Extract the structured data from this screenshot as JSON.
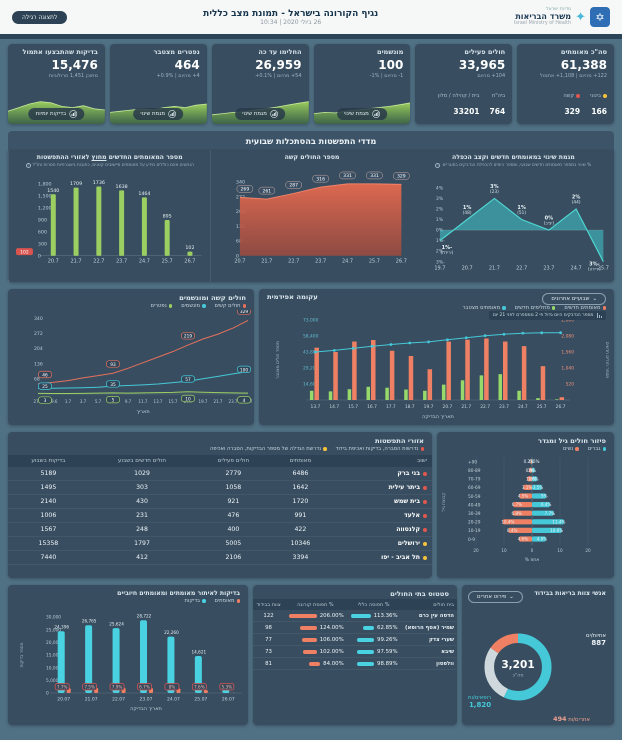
{
  "colors": {
    "page_bg": "#507084",
    "card_bg": "#384e60",
    "band_bg": "#3d5468",
    "teal": "#45c8d8",
    "orange": "#ef8063",
    "green": "#9ccf62",
    "red": "#e2574c",
    "yellow": "#f5c33b",
    "cyan": "#49d2e2"
  },
  "icons": {
    "info": "i",
    "chevron": "⌄"
  },
  "header": {
    "logo_top": "מדינת ישראל",
    "logo_title": "משרד הבריאות",
    "logo_subtitle": "Israel Ministry of Health",
    "title": "נגיף הקורונה בישראל - תמונת מצב כללית",
    "datetime": "26 ביולי 2020 | 10:34",
    "view_button": "לתצוגה רגילה"
  },
  "kpis": [
    {
      "title": "סה\"כ מאומתים",
      "value": "61,388",
      "delta": "‎+122 מהיום | ‎+1,108 אתמול",
      "substats": [
        {
          "label": "בינוני",
          "dot": "#f5c33b",
          "value": "166"
        },
        {
          "label": "קשה",
          "dot": "#e2574c",
          "value": "329"
        }
      ]
    },
    {
      "title": "חולים פעילים",
      "value": "33,965",
      "delta": "‎+104 מהיום",
      "substats": [
        {
          "label": "ביה\"ח",
          "value": "764"
        },
        {
          "label": "בית / קהילה / מלון",
          "value": "33201"
        }
      ]
    },
    {
      "title": "מונשמים",
      "value": "100",
      "delta": "‎-1 מהיום | ‎-1%",
      "button": "מגמת שינוי",
      "spark": [
        0.35,
        0.4,
        0.38,
        0.45,
        0.5,
        0.55,
        0.6,
        0.65,
        0.72,
        0.8
      ]
    },
    {
      "title": "החלימו עד כה",
      "value": "26,959",
      "delta": "‎+54 מהיום | ‎+0.1%",
      "button": "מגמת שינוי",
      "spark": [
        0.3,
        0.35,
        0.4,
        0.42,
        0.5,
        0.55,
        0.62,
        0.7,
        0.78,
        0.85
      ]
    },
    {
      "title": "נפטרים מצטבר",
      "value": "464",
      "delta": "‎+4 מהיום | ‎+0.9%",
      "button": "מגמת שינוי",
      "spark": [
        0.4,
        0.45,
        0.5,
        0.55,
        0.5,
        0.6,
        0.65,
        0.6,
        0.7,
        0.75
      ]
    },
    {
      "title": "בדיקות שהתבצעו אתמול",
      "value": "15,476",
      "delta": "מתוכן 1,451 סרולוגיות",
      "button": "בדיקות יומיות",
      "spark": [
        0.45,
        0.6,
        0.75,
        0.85,
        0.8,
        0.65,
        0.6,
        0.68,
        0.55,
        0.5
      ]
    }
  ],
  "section_title": "מדדי התפשטות בהסתכלות שבועית",
  "chart_data": [
    {
      "id": "new-confirmed-outside-spread-areas",
      "type": "bar",
      "title_pre": "מספר המאומתים החדשים",
      "title_em": "מחוץ",
      "title_post": "לאזורי ההתפשטות",
      "subtitle": "הנתונים אינם כוללים מידע על מאומתים מיישובים קטנים, כתובות גיאוגרפיות חסרות וחו\"ל",
      "categories": [
        "20.7",
        "21.7",
        "22.7",
        "23.7",
        "24.7",
        "25.7",
        "26.7"
      ],
      "values": [
        1540,
        1709,
        1736,
        1638,
        1464,
        895,
        102
      ],
      "ylim": [
        0,
        1800
      ],
      "yticks": [
        0,
        300,
        600,
        900,
        1200,
        1500,
        1800
      ],
      "latest_badge": "102",
      "bar_color": "#9ccf62"
    },
    {
      "id": "severe-patients-count",
      "type": "area",
      "title": "מספר החולים קשה",
      "categories": [
        "20.7",
        "21.7",
        "22.7",
        "23.7",
        "24.7",
        "25.7",
        "26.7"
      ],
      "values": [
        269,
        261,
        287,
        316,
        331,
        331,
        329
      ],
      "ylim": [
        0,
        340
      ],
      "yticks": [
        0,
        68,
        136,
        204,
        272,
        340
      ],
      "color": "#e5604b"
    },
    {
      "id": "weekly-change-and-doubling-rate",
      "type": "area",
      "title": "מגמת שינוי במאומתים חדשים וקצב הכפלה",
      "subtitle": "% שינוי במספר מאומתים חדשים שבועי, ומספר הימים להכפלת הנדבקים בסוגריים",
      "categories": [
        "19.7",
        "20.7",
        "21.7",
        "22.7",
        "23.7",
        "24.7",
        "25.7"
      ],
      "values": [
        -1,
        1,
        3,
        1,
        0,
        2,
        -3
      ],
      "point_labels": [
        [
          "-1%",
          "(ירידה)"
        ],
        [
          "1%",
          "(48)"
        ],
        [
          "3%",
          "(23)"
        ],
        [
          "1%",
          "(51)"
        ],
        [
          "0%",
          "(יציב)"
        ],
        [
          "2%",
          "(44)"
        ],
        [
          "-3%",
          "(ירידה)"
        ]
      ],
      "yticks": [
        "4%",
        "3%",
        "2%",
        "1%",
        "0%",
        "-1%",
        "-2%",
        "-3%"
      ],
      "ylim": [
        -3,
        4
      ],
      "color": "#3fc8cf"
    },
    {
      "id": "severe-and-ventilated",
      "type": "line",
      "title": "חולים קשה ומונשמים",
      "xlabel": "תאריך",
      "categories": [
        "27.6",
        "29.6",
        "1.7",
        "3.7",
        "5.7",
        "7.7",
        "9.7",
        "11.7",
        "13.7",
        "15.7",
        "17.7",
        "19.7",
        "21.7",
        "23.7",
        "25.7"
      ],
      "ylim": [
        0,
        340
      ],
      "yticks": [
        68,
        136,
        204,
        272,
        340
      ],
      "series": [
        {
          "name": "חולים קשים",
          "color": "#e5705c",
          "values": [
            46,
            52,
            60,
            72,
            82,
            93,
            115,
            140,
            165,
            190,
            219,
            246,
            268,
            295,
            329
          ],
          "labeled": [
            0,
            5,
            10,
            14
          ]
        },
        {
          "name": "מונשמים",
          "color": "#45c8d8",
          "values": [
            25,
            26,
            27,
            28,
            30,
            35,
            38,
            41,
            45,
            51,
            57,
            68,
            79,
            90,
            100
          ],
          "labeled": [
            0,
            5,
            10,
            14
          ]
        },
        {
          "name": "נפטרים",
          "color": "#9ccf62",
          "values": [
            3,
            2,
            2,
            3,
            4,
            5,
            4,
            5,
            6,
            7,
            10,
            8,
            6,
            5,
            4
          ],
          "labeled": [
            0,
            5,
            10,
            14
          ]
        }
      ]
    },
    {
      "id": "epidemic-curve",
      "type": "combo",
      "title": "עקומה אפידמית",
      "filter_label": "שבועיים אחרונים",
      "annotation": "מספר הנדבקים היום גדול פי 2 ממספרם לפני 21 יום",
      "categories": [
        "13.7",
        "14.7",
        "15.7",
        "16.7",
        "17.7",
        "18.7",
        "19.7",
        "20.7",
        "21.7",
        "22.7",
        "23.7",
        "24.7",
        "25.7",
        "26.7"
      ],
      "bars": [
        {
          "name": "מאומתים חדשים",
          "color": "#ef8063",
          "values": [
            1700,
            1560,
            1900,
            1950,
            1600,
            1430,
            1000,
            1900,
            1960,
            2000,
            1900,
            1750,
            1100,
            90
          ]
        },
        {
          "name": "מחלימים חדשים",
          "color": "#97d96a",
          "values": [
            300,
            280,
            350,
            430,
            400,
            340,
            300,
            500,
            640,
            800,
            840,
            300,
            60,
            20
          ]
        }
      ],
      "line": {
        "name": "מאומתים מצטבר",
        "color": "#45c8d8",
        "values": [
          43800,
          45300,
          47100,
          49000,
          50600,
          52000,
          53000,
          54900,
          56800,
          58700,
          60000,
          61000,
          61300,
          61400
        ]
      },
      "left_axis": {
        "title": "מספר חולים מצטבר",
        "ticks": [
          14600,
          29200,
          43800,
          58400,
          73000
        ],
        "max": 73000
      },
      "right_axis": {
        "title": "מספר חולים חדשים",
        "ticks": [
          520,
          1040,
          1560,
          2080,
          2600
        ],
        "max": 2600
      },
      "xlabel": "תאריך הבדיקה"
    },
    {
      "id": "spread-areas-table",
      "type": "table",
      "title": "אזורי התפשטות",
      "legend": [
        {
          "color": "#e2574c",
          "label": "נדרשות הסברה, בדיקות ואכיפת בידוד"
        },
        {
          "color": "#f5c33b",
          "label": "נדרשת הגדלה של מספר הבדיקות, הסברה ואכיפה"
        }
      ],
      "columns": [
        "ישוב",
        "מאומתים",
        "חולים פעילים",
        "חולים חדשים בשבוע",
        "בדיקות בשבוע"
      ],
      "rows": [
        {
          "city": "בני ברק",
          "dot": "#e2574c",
          "confirmed": "6486",
          "active": "2779",
          "new_week": "1029",
          "tests_week": "5189"
        },
        {
          "city": "ביתר עילית",
          "dot": "#e2574c",
          "confirmed": "1642",
          "active": "1058",
          "new_week": "303",
          "tests_week": "1495"
        },
        {
          "city": "בית שמש",
          "dot": "#e2574c",
          "confirmed": "1720",
          "active": "921",
          "new_week": "430",
          "tests_week": "2140"
        },
        {
          "city": "אלעד",
          "dot": "#e2574c",
          "confirmed": "991",
          "active": "476",
          "new_week": "231",
          "tests_week": "1006"
        },
        {
          "city": "קלנסווה",
          "dot": "#e2574c",
          "confirmed": "422",
          "active": "400",
          "new_week": "248",
          "tests_week": "1567"
        },
        {
          "city": "ירושלים",
          "dot": "#f5c33b",
          "confirmed": "10346",
          "active": "5005",
          "new_week": "1797",
          "tests_week": "15358"
        },
        {
          "city": "תל אביב - יפו",
          "dot": "#f5c33b",
          "confirmed": "3394",
          "active": "2106",
          "new_week": "412",
          "tests_week": "7440"
        }
      ]
    },
    {
      "id": "age-gender-distribution",
      "type": "pyramid",
      "title": "פיזור חולים גיל ומגדר",
      "legend": [
        {
          "label": "גברים",
          "color": "#45c8d8"
        },
        {
          "label": "נשים",
          "color": "#ef8063"
        }
      ],
      "groups": [
        "90+",
        "80-89",
        "70-79",
        "60-69",
        "50-59",
        "40-49",
        "30-39",
        "20-29",
        "10-19",
        "0-9"
      ],
      "men": [
        0.2,
        0.9,
        1.8,
        3.5,
        5,
        6.4,
        7.7,
        11.4,
        10.6,
        4.9
      ],
      "men_labels": [
        "0.2%",
        "0.9%",
        "1.8%",
        "3.5%",
        "5%",
        "6.4%",
        "7.7%",
        "11.4%",
        "10.6%",
        "4.9%"
      ],
      "women": [
        0.5,
        1,
        1.6,
        3.1,
        4.5,
        6.7,
        6.8,
        10.4,
        8.4,
        4.6
      ],
      "women_labels": [
        "0.5%",
        "1%",
        "1.6%",
        "3.1%",
        "4.5%",
        "6.7%",
        "6.8%",
        "10.4%",
        "8.4%",
        "4.6%"
      ],
      "xticks": [
        "20",
        "10",
        "0",
        "10",
        "20"
      ],
      "xlabel": "אחוז %",
      "ylabel": "קבוצת גיל"
    },
    {
      "id": "tests-and-positive-confirmed",
      "type": "bar",
      "title": "בדיקות לאיתור מאומתים ומאומתים חיוביים",
      "legend": [
        {
          "label": "מאומתים",
          "color": "#ef8063"
        },
        {
          "label": "בדיקות",
          "color": "#49d2e2"
        }
      ],
      "categories": [
        "20.07",
        "21.07",
        "22.07",
        "23.07",
        "24.07",
        "25.07",
        "26.07"
      ],
      "tests": [
        24396,
        26765,
        25624,
        28722,
        22260,
        14621,
        1126
      ],
      "tests_labels": [
        "24,396",
        "26,765",
        "25,624",
        "28,722",
        "22,260",
        "14,621",
        "1,126"
      ],
      "positives": [
        1878,
        2007,
        2024,
        1924,
        1781,
        1111,
        60
      ],
      "positive_pct": [
        "7.7%",
        "7.5%",
        "7.9%",
        "6.7%",
        "8%",
        "7.6%",
        "5.3%"
      ],
      "ylim": [
        0,
        30000
      ],
      "ylabel": "מספר בדיקות",
      "xlabel": "תאריך הבדיקה"
    },
    {
      "id": "hospital-status-table",
      "type": "table",
      "title": "סטטוס בתי החולים",
      "columns": [
        "בית חולים",
        "% תפוסה כללי",
        "% תפוסת קורונה",
        "צוות בבידוד"
      ],
      "rows": [
        {
          "name": "הדסה עין כרם",
          "general": "113.36%",
          "general_v": 113.36,
          "corona": "206.00%",
          "corona_v": 206,
          "staff": "122"
        },
        {
          "name": "שמיר (אסף הרופא)",
          "general": "62.85%",
          "general_v": 62.85,
          "corona": "124.00%",
          "corona_v": 124,
          "staff": "98"
        },
        {
          "name": "שערי צדק",
          "general": "99.26%",
          "general_v": 99.26,
          "corona": "106.00%",
          "corona_v": 106,
          "staff": "77"
        },
        {
          "name": "שיבא",
          "general": "97.59%",
          "general_v": 97.59,
          "corona": "102.00%",
          "corona_v": 102,
          "staff": "73"
        },
        {
          "name": "וולפסון",
          "general": "98.89%",
          "general_v": 98.89,
          "corona": "84.00%",
          "corona_v": 84,
          "staff": "81"
        }
      ]
    },
    {
      "id": "health-staff-in-isolation",
      "type": "donut",
      "title": "אנשי צוות בריאות בבידוד",
      "filter_label": "פירוט אחרים",
      "total": "3,201",
      "total_label": "סה\"כ",
      "segments": [
        {
          "label": "רופאים/ות",
          "value": 1820,
          "display": "1,820",
          "color": "#45c8d8"
        },
        {
          "label": "אחיות/ים",
          "value": 887,
          "display": "887",
          "color": "#cfd8dc"
        },
        {
          "label": "אחרים/ות",
          "value": 494,
          "display": "494",
          "color": "#ef8063"
        }
      ]
    }
  ]
}
